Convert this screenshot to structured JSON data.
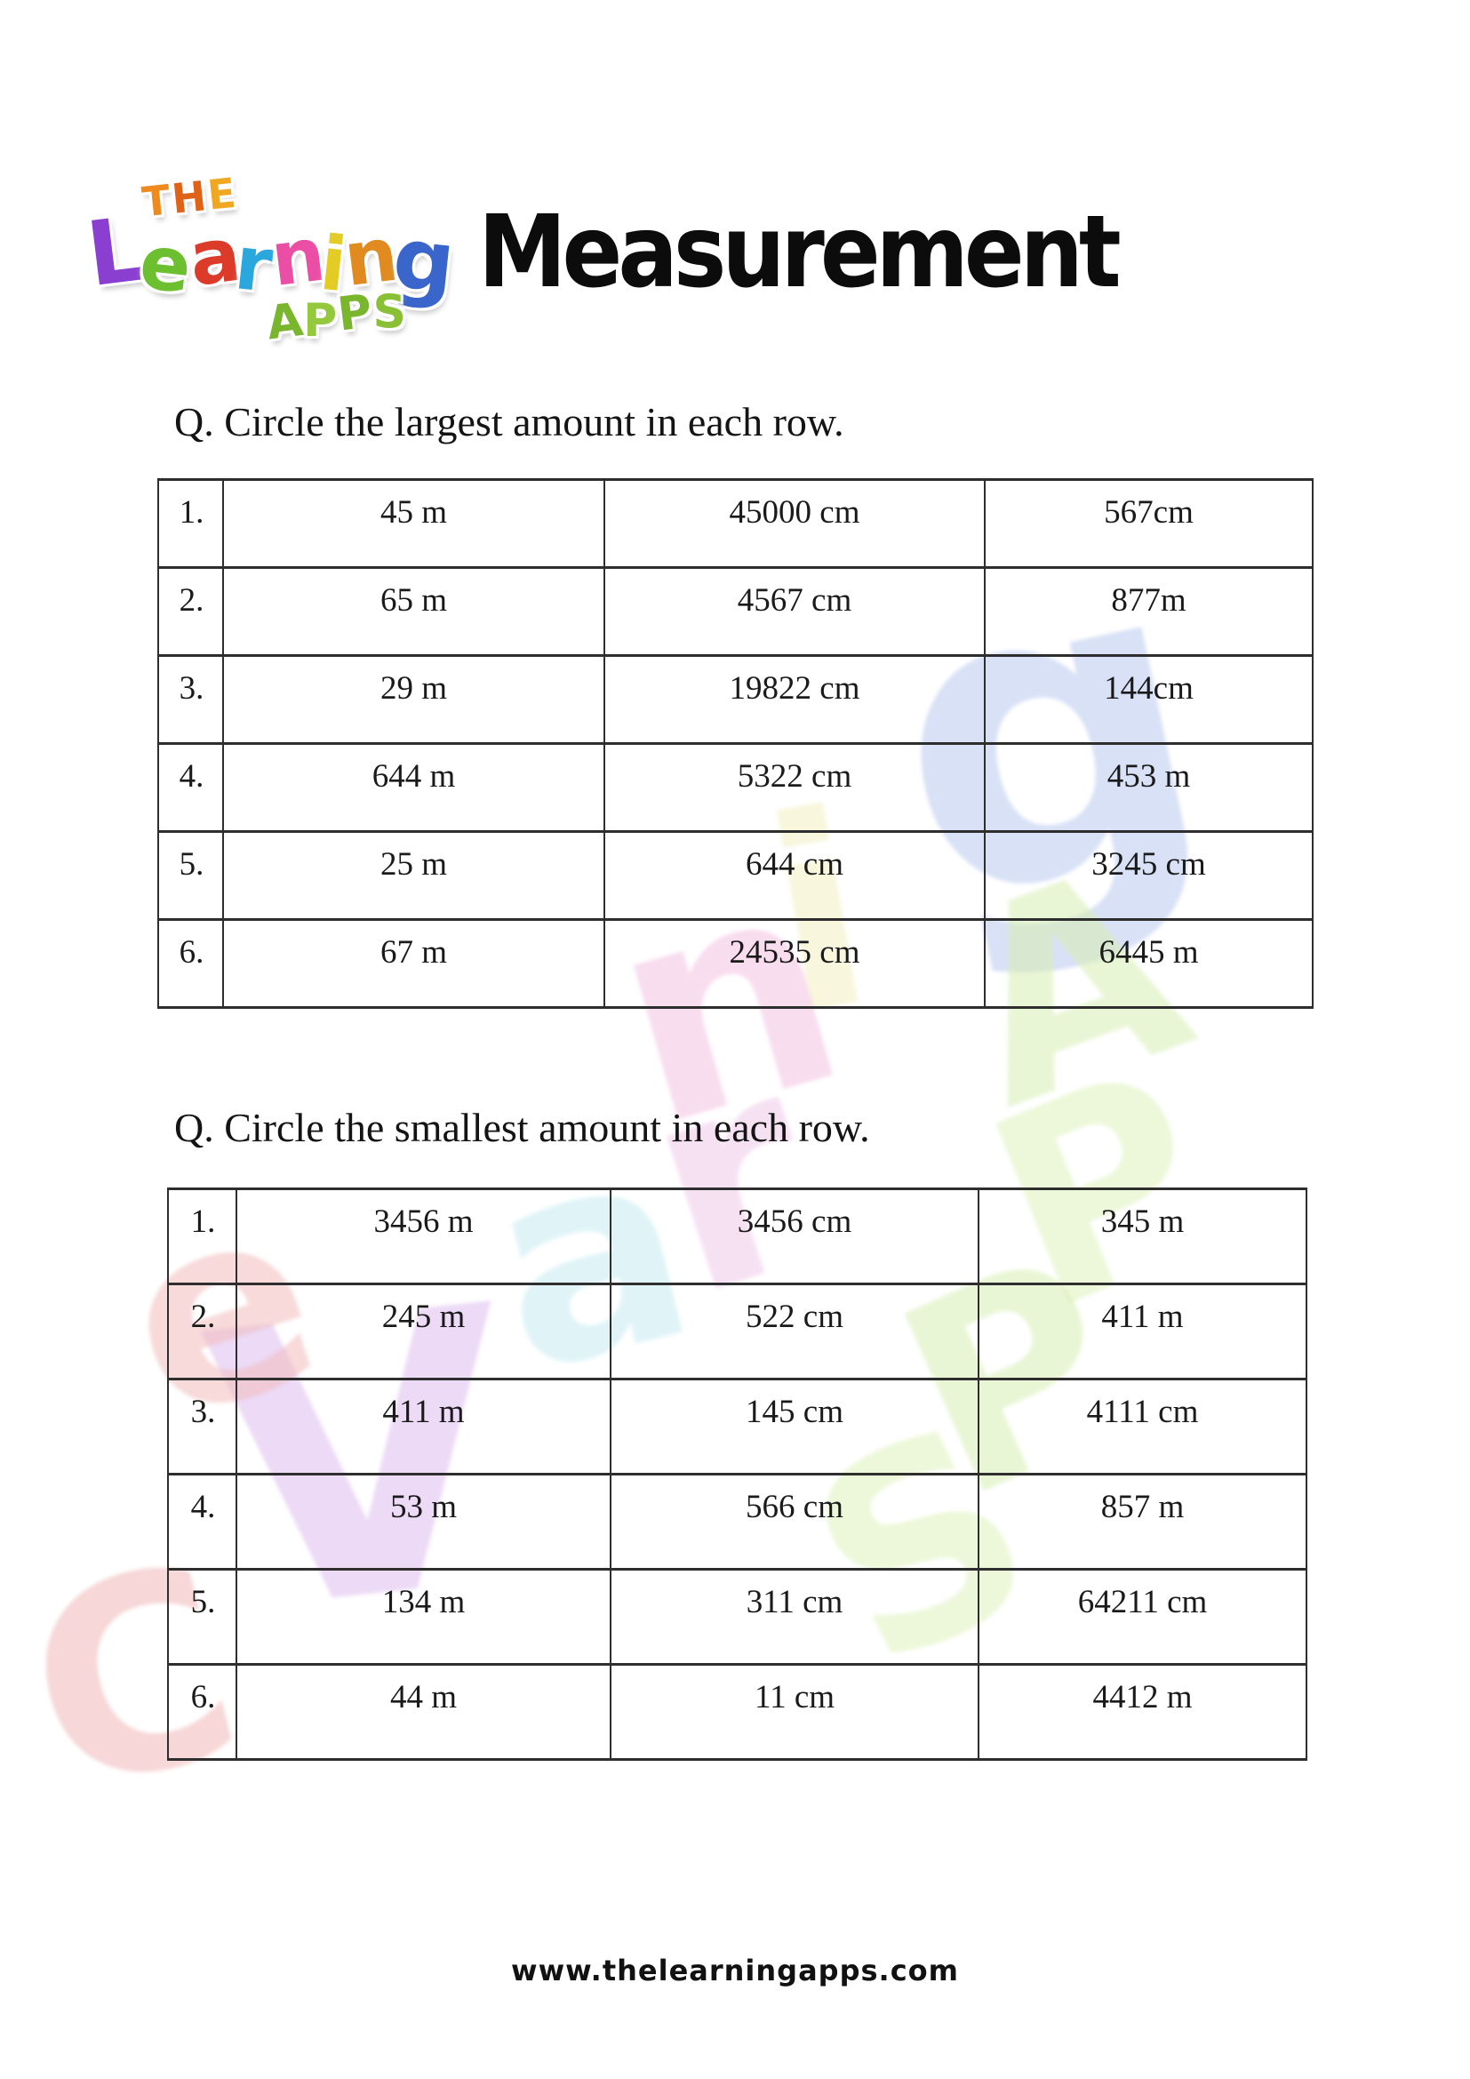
{
  "page": {
    "title": "Measurement",
    "footer": "www.thelearningapps.com"
  },
  "logo": {
    "the": [
      {
        "ch": "T",
        "color": "#ef8a1f"
      },
      {
        "ch": "H",
        "color": "#e06218"
      },
      {
        "ch": "E",
        "color": "#f0a722"
      }
    ],
    "learning": [
      {
        "ch": "L",
        "color": "#8a3fd0"
      },
      {
        "ch": "e",
        "color": "#6cbf2e"
      },
      {
        "ch": "a",
        "color": "#dd3b2a"
      },
      {
        "ch": "r",
        "color": "#2aa8dd"
      },
      {
        "ch": "n",
        "color": "#ea4fa5"
      },
      {
        "ch": "i",
        "color": "#e3cc25"
      },
      {
        "ch": "n",
        "color": "#e08a1f"
      },
      {
        "ch": "g",
        "color": "#3a66cc"
      }
    ],
    "apps": [
      {
        "ch": "A",
        "color": "#7ab52e"
      },
      {
        "ch": "P",
        "color": "#94c93d"
      },
      {
        "ch": "P",
        "color": "#7ab52e"
      },
      {
        "ch": "S",
        "color": "#89c036"
      }
    ]
  },
  "questions": [
    {
      "heading": "Q. Circle the largest amount in each row.",
      "rows": [
        {
          "num": "1.",
          "cells": [
            "45 m",
            "45000 cm",
            "567cm"
          ]
        },
        {
          "num": "2.",
          "cells": [
            "65 m",
            "4567 cm",
            "877m"
          ]
        },
        {
          "num": "3.",
          "cells": [
            "29 m",
            "19822 cm",
            "144cm"
          ]
        },
        {
          "num": "4.",
          "cells": [
            "644 m",
            "5322 cm",
            "453 m"
          ]
        },
        {
          "num": "5.",
          "cells": [
            "25 m",
            "644 cm",
            "3245 cm"
          ]
        },
        {
          "num": "6.",
          "cells": [
            "67 m",
            "24535 cm",
            "6445 m"
          ]
        }
      ]
    },
    {
      "heading": "Q. Circle the smallest amount in each row.",
      "rows": [
        {
          "num": "1.",
          "cells": [
            "3456 m",
            "3456 cm",
            "345 m"
          ]
        },
        {
          "num": "2.",
          "cells": [
            "245 m",
            "522 cm",
            "411 m"
          ]
        },
        {
          "num": "3.",
          "cells": [
            "411 m",
            "145 cm",
            "4111 cm"
          ]
        },
        {
          "num": "4.",
          "cells": [
            "53 m",
            "566 cm",
            "857 m"
          ]
        },
        {
          "num": "5.",
          "cells": [
            "134 m",
            "311 cm",
            "64211 cm"
          ]
        },
        {
          "num": "6.",
          "cells": [
            "44 m",
            "11 cm",
            "4412 m"
          ]
        }
      ]
    }
  ],
  "watermark": {
    "letters": [
      {
        "ch": "g",
        "color": "#b9c8ee"
      },
      {
        "ch": "i",
        "color": "#f3eec0"
      },
      {
        "ch": "n",
        "color": "#f2c2e2"
      },
      {
        "ch": "r",
        "color": "#eec9ea"
      },
      {
        "ch": "a",
        "color": "#c6ecf2"
      },
      {
        "ch": "V",
        "color": "#dcbcee"
      },
      {
        "ch": "e",
        "color": "#f2bcbc"
      },
      {
        "ch": "C",
        "color": "#f0b6b6"
      },
      {
        "ch": "A",
        "color": "#d8eeb2"
      },
      {
        "ch": "P",
        "color": "#def2bc"
      },
      {
        "ch": "P",
        "color": "#d8eeb2"
      },
      {
        "ch": "S",
        "color": "#def2bc"
      }
    ]
  }
}
